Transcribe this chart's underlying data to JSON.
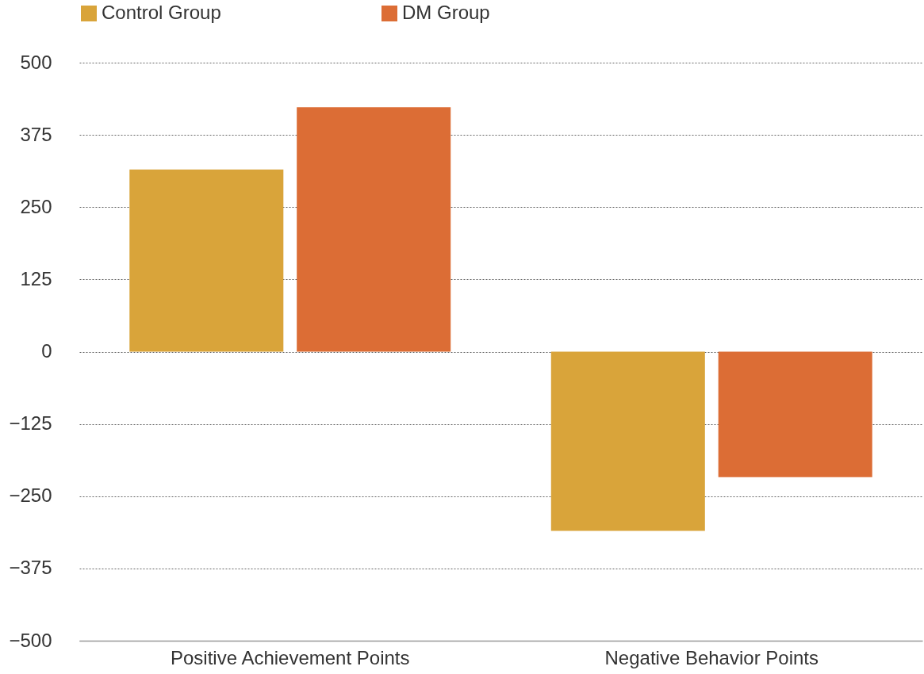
{
  "chart_data": {
    "type": "bar",
    "categories": [
      "Positive Achievement Points",
      "Negative Behavior Points"
    ],
    "series": [
      {
        "name": "Control Group",
        "color": "#d9a43a",
        "values": [
          315,
          -310
        ]
      },
      {
        "name": "DM Group",
        "color": "#dc6d35",
        "values": [
          423,
          -217
        ]
      }
    ],
    "ylim": [
      -500,
      500
    ],
    "yticks": [
      -500,
      -375,
      -250,
      -125,
      0,
      125,
      250,
      375,
      500
    ],
    "grid": "y",
    "legend": "top"
  }
}
